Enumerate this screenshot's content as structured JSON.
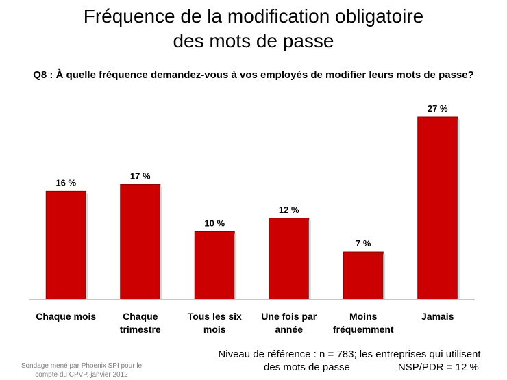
{
  "title_line1": "Fréquence de la modification obligatoire",
  "title_line2": "des mots de passe",
  "question": "Q8 : À quelle fréquence demandez-vous à vos employés de modifier leurs mots de passe?",
  "colors": {
    "bar": "#cc0000",
    "bar_edge": "#8b0000",
    "axis": "#b3b3b3"
  },
  "chart_data": {
    "type": "bar",
    "title": "Fréquence de la modification obligatoire des mots de passe",
    "categories": [
      [
        "Chaque mois"
      ],
      [
        "Chaque",
        "trimestre"
      ],
      [
        "Tous les six",
        "mois"
      ],
      [
        "Une fois par",
        "année"
      ],
      [
        "Moins",
        "fréquemment"
      ],
      [
        "Jamais"
      ]
    ],
    "values": [
      16,
      17,
      10,
      12,
      7,
      27
    ],
    "value_labels": [
      "16 %",
      "17 %",
      "10 %",
      "12 %",
      "7 %",
      "27 %"
    ],
    "unit": "%",
    "ylim": [
      0,
      27
    ],
    "xlabel": "",
    "ylabel": ""
  },
  "footer": {
    "source_line1": "Sondage mené par Phoenix SPI pour le",
    "source_line2": "compte du CPVP, janvier 2012",
    "base_line1": "Niveau de référence : n = 783; les entreprises qui utilisent",
    "base_line2": "des mots de passe",
    "nsp": "NSP/PDR = 12 %"
  }
}
